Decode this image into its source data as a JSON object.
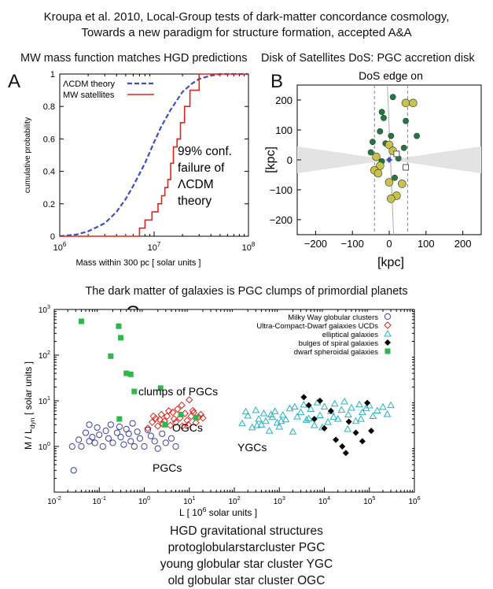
{
  "header": {
    "line1": "Kroupa et al. 2010, Local-Group tests of dark-matter concordance cosmology,",
    "line2": "Towards a new paradigm for structure formation, accepted A&A"
  },
  "panelA": {
    "letter": "A",
    "title": "MW mass function matches HGD predictions",
    "annotation": [
      "99% conf.",
      "failure of",
      "ΛCDM",
      "theory"
    ]
  },
  "panelB": {
    "letter": "B",
    "title": "Disk of Satellites DoS: PGC accretion disk"
  },
  "panelC": {
    "letter": "C",
    "title": "The dark matter of galaxies is PGC clumps of primordial planets",
    "annotations": {
      "clumps": "clumps of PGCs",
      "ogcs": "OGCs",
      "pgcs": "PGCs",
      "ygcs": "YGCs"
    }
  },
  "footer": {
    "lines": [
      "HGD gravitational structures",
      "protoglobularstarcluster PGC",
      "young globular star cluster YGC",
      "old globular star cluster OGC"
    ]
  },
  "chart_data": [
    {
      "type": "line",
      "xlabel": "Mass within 300 pc   [ solar units ]",
      "ylabel": "cumulative probability",
      "xscale": "log",
      "xlim": [
        1000000,
        100000000
      ],
      "ylim": [
        0,
        1
      ],
      "xticks": [
        "10^6",
        "10^7",
        "10^8"
      ],
      "yticks": [
        "0",
        "0.2",
        "0.4",
        "0.6",
        "0.8",
        "1"
      ],
      "legend_position": "top-left",
      "series": [
        {
          "name": "ΛCDM theory",
          "style": "dashed",
          "color": "#3a4fc4",
          "x": [
            1000000,
            1500000,
            2000000,
            3000000,
            4000000,
            5000000,
            6000000,
            8000000,
            10000000,
            12000000,
            15000000,
            20000000,
            25000000,
            30000000,
            40000000,
            50000000,
            100000000
          ],
          "y": [
            0.0,
            0.01,
            0.03,
            0.08,
            0.15,
            0.23,
            0.31,
            0.45,
            0.58,
            0.68,
            0.78,
            0.89,
            0.94,
            0.97,
            0.99,
            1.0,
            1.0
          ]
        },
        {
          "name": "MW satellites",
          "style": "step",
          "color": "#e0231c",
          "x": [
            1000000,
            5000000,
            7000000,
            8000000,
            9500000,
            11000000,
            12000000,
            13000000,
            14000000,
            15000000,
            16000000,
            17500000,
            19000000,
            21000000,
            24000000,
            30000000,
            100000000
          ],
          "y": [
            0.0,
            0.0,
            0.05,
            0.1,
            0.15,
            0.2,
            0.25,
            0.3,
            0.35,
            0.45,
            0.55,
            0.6,
            0.7,
            0.8,
            0.9,
            1.0,
            1.0
          ]
        }
      ]
    },
    {
      "type": "scatter",
      "title": "DoS edge on",
      "xlabel": "[kpc]",
      "ylabel": "[kpc]",
      "xlim": [
        -250,
        250
      ],
      "ylim": [
        -250,
        250
      ],
      "xticks": [
        -200,
        -100,
        0,
        100,
        200
      ],
      "yticks": [
        -200,
        -100,
        0,
        100,
        200
      ],
      "series": [
        {
          "name": "green",
          "color": "#1f7a3e",
          "points": [
            [
              10,
              210
            ],
            [
              -20,
              160
            ],
            [
              -15,
              140
            ],
            [
              45,
              130
            ],
            [
              -25,
              95
            ],
            [
              5,
              80
            ],
            [
              75,
              80
            ],
            [
              -45,
              60
            ],
            [
              -10,
              55
            ],
            [
              40,
              40
            ],
            [
              -50,
              25
            ],
            [
              25,
              5
            ],
            [
              -20,
              -5
            ],
            [
              15,
              -60
            ]
          ]
        },
        {
          "name": "olive",
          "color": "#c8c24a",
          "points": [
            [
              45,
              190
            ],
            [
              65,
              190
            ],
            [
              0,
              50
            ],
            [
              10,
              30
            ],
            [
              -35,
              10
            ],
            [
              -25,
              -20
            ],
            [
              -40,
              -35
            ],
            [
              -30,
              -45
            ],
            [
              0,
              -75
            ],
            [
              35,
              -80
            ],
            [
              20,
              -120
            ],
            [
              5,
              -130
            ]
          ]
        },
        {
          "name": "open",
          "color": "#555555",
          "points": [
            [
              20,
              20
            ],
            [
              45,
              -25
            ]
          ]
        }
      ],
      "blue_diamond": [
        [
          0,
          0
        ]
      ]
    },
    {
      "type": "scatter",
      "xlabel": "L  [ 10^6 solar units ]",
      "ylabel": "M / L_dyn   [ solar units ]",
      "xscale": "log",
      "yscale": "log",
      "xlim": [
        0.01,
        1000000
      ],
      "ylim": [
        0.1,
        1000
      ],
      "xticks": [
        "10^-2",
        "10^-1",
        "10^0",
        "10^1",
        "10^2",
        "10^3",
        "10^4",
        "10^5",
        "10^6"
      ],
      "yticks": [
        "10^0",
        "10^1",
        "10^2",
        "10^3"
      ],
      "legend_position": "top-right",
      "series": [
        {
          "name": "Milky Way globular clusters",
          "marker": "circle",
          "color": "#3b3fa8",
          "points": [
            [
              0.027,
              0.3
            ],
            [
              0.025,
              1.0
            ],
            [
              0.035,
              1.4
            ],
            [
              0.04,
              1.0
            ],
            [
              0.05,
              2.0
            ],
            [
              0.06,
              3.0
            ],
            [
              0.07,
              1.6
            ],
            [
              0.08,
              1.2
            ],
            [
              0.09,
              2.6
            ],
            [
              0.1,
              1.8
            ],
            [
              0.12,
              1.0
            ],
            [
              0.14,
              2.2
            ],
            [
              0.16,
              1.5
            ],
            [
              0.2,
              1.2
            ],
            [
              0.25,
              2.0
            ],
            [
              0.3,
              1.6
            ],
            [
              0.35,
              1.1
            ],
            [
              0.4,
              2.4
            ],
            [
              0.45,
              1.9
            ],
            [
              0.5,
              1.3
            ],
            [
              0.6,
              1.0
            ],
            [
              0.7,
              2.1
            ],
            [
              0.8,
              1.5
            ],
            [
              1.0,
              1.0
            ],
            [
              1.2,
              2.3
            ],
            [
              1.4,
              1.7
            ],
            [
              1.7,
              1.3
            ],
            [
              2.0,
              0.9
            ],
            [
              2.5,
              1.9
            ],
            [
              3.0,
              1.2
            ],
            [
              4.0,
              1.5
            ],
            [
              5.0,
              1.0
            ],
            [
              0.18,
              3.0
            ],
            [
              0.28,
              2.7
            ],
            [
              0.06,
              1.3
            ],
            [
              0.55,
              3.2
            ]
          ]
        },
        {
          "name": "Ultra-Compact-Dwarf galaxies UCDs",
          "marker": "diamond",
          "color": "#e0231c",
          "points": [
            [
              1.2,
              2.5
            ],
            [
              1.5,
              3.4
            ],
            [
              1.8,
              4.1
            ],
            [
              2.0,
              2.8
            ],
            [
              2.4,
              5.0
            ],
            [
              2.8,
              3.6
            ],
            [
              3.2,
              4.6
            ],
            [
              3.8,
              2.9
            ],
            [
              4.3,
              5.6
            ],
            [
              5.0,
              3.4
            ],
            [
              5.5,
              6.6
            ],
            [
              6.2,
              4.2
            ],
            [
              7.0,
              2.8
            ],
            [
              8.0,
              5.3
            ],
            [
              9.0,
              3.7
            ],
            [
              10,
              10.5
            ],
            [
              11,
              4.6
            ],
            [
              12,
              6.1
            ],
            [
              14,
              3.3
            ],
            [
              16,
              4.4
            ],
            [
              18,
              5.0
            ],
            [
              20,
              4.2
            ],
            [
              1.6,
              4.6
            ],
            [
              2.2,
              3.9
            ],
            [
              3.5,
              6.0
            ],
            [
              4.6,
              4.0
            ],
            [
              6.8,
              8.0
            ],
            [
              9.5,
              3.0
            ],
            [
              12.5,
              5.5
            ],
            [
              2.6,
              3.1
            ]
          ]
        },
        {
          "name": "elliptical galaxies",
          "marker": "triangle",
          "color": "#23b3c8",
          "points": [
            [
              150,
              3.2
            ],
            [
              200,
              4.7
            ],
            [
              250,
              2.6
            ],
            [
              300,
              6.2
            ],
            [
              350,
              4.0
            ],
            [
              400,
              3.0
            ],
            [
              450,
              5.3
            ],
            [
              500,
              3.6
            ],
            [
              600,
              2.2
            ],
            [
              700,
              4.4
            ],
            [
              800,
              5.9
            ],
            [
              900,
              3.3
            ],
            [
              1000,
              2.7
            ],
            [
              1200,
              4.9
            ],
            [
              1400,
              3.9
            ],
            [
              1700,
              6.8
            ],
            [
              2000,
              2.1
            ],
            [
              2500,
              4.5
            ],
            [
              3000,
              5.6
            ],
            [
              3500,
              8.2
            ],
            [
              4000,
              3.8
            ],
            [
              5000,
              6.6
            ],
            [
              6000,
              2.9
            ],
            [
              7000,
              9.2
            ],
            [
              8000,
              4.8
            ],
            [
              10000,
              7.4
            ],
            [
              12000,
              3.4
            ],
            [
              14000,
              5.9
            ],
            [
              17000,
              8.6
            ],
            [
              20000,
              4.0
            ],
            [
              24000,
              6.3
            ],
            [
              28000,
              9.6
            ],
            [
              34000,
              5.0
            ],
            [
              40000,
              7.0
            ],
            [
              50000,
              3.6
            ],
            [
              60000,
              8.3
            ],
            [
              70000,
              5.6
            ],
            [
              85000,
              6.9
            ],
            [
              100000,
              7.9
            ],
            [
              120000,
              4.6
            ],
            [
              150000,
              6.1
            ],
            [
              200000,
              7.3
            ],
            [
              250000,
              5.1
            ],
            [
              300000,
              8.0
            ],
            [
              180,
              5.8
            ],
            [
              320,
              2.9
            ],
            [
              650,
              5.0
            ],
            [
              1100,
              3.6
            ],
            [
              2200,
              7.4
            ],
            [
              4500,
              4.1
            ],
            [
              9000,
              2.6
            ],
            [
              16000,
              4.4
            ],
            [
              33000,
              2.4
            ],
            [
              65000,
              4.0
            ]
          ]
        },
        {
          "name": "bulges of spiral galaxies",
          "marker": "filled-diamond",
          "color": "#000000",
          "points": [
            [
              3500,
              12.0
            ],
            [
              4500,
              8.0
            ],
            [
              6000,
              4.0
            ],
            [
              8000,
              10.0
            ],
            [
              10000,
              2.5
            ],
            [
              14000,
              6.0
            ],
            [
              18000,
              1.4
            ],
            [
              25000,
              1.0
            ],
            [
              30000,
              0.72
            ],
            [
              35000,
              3.5
            ],
            [
              50000,
              2.0
            ],
            [
              70000,
              1.3
            ],
            [
              90000,
              9.0
            ],
            [
              110000,
              2.2
            ]
          ]
        },
        {
          "name": "dwarf spheroidal galaxies",
          "marker": "square",
          "color": "#2eb84a",
          "points": [
            [
              0.04,
              550
            ],
            [
              0.27,
              430
            ],
            [
              0.3,
              240
            ],
            [
              0.18,
              95
            ],
            [
              0.4,
              40
            ],
            [
              0.5,
              38
            ],
            [
              0.6,
              16
            ],
            [
              2.3,
              19
            ],
            [
              0.28,
              4.0
            ],
            [
              2.9,
              3.0
            ],
            [
              6.5,
              5.0
            ],
            [
              14,
              4.3
            ]
          ]
        }
      ]
    }
  ]
}
